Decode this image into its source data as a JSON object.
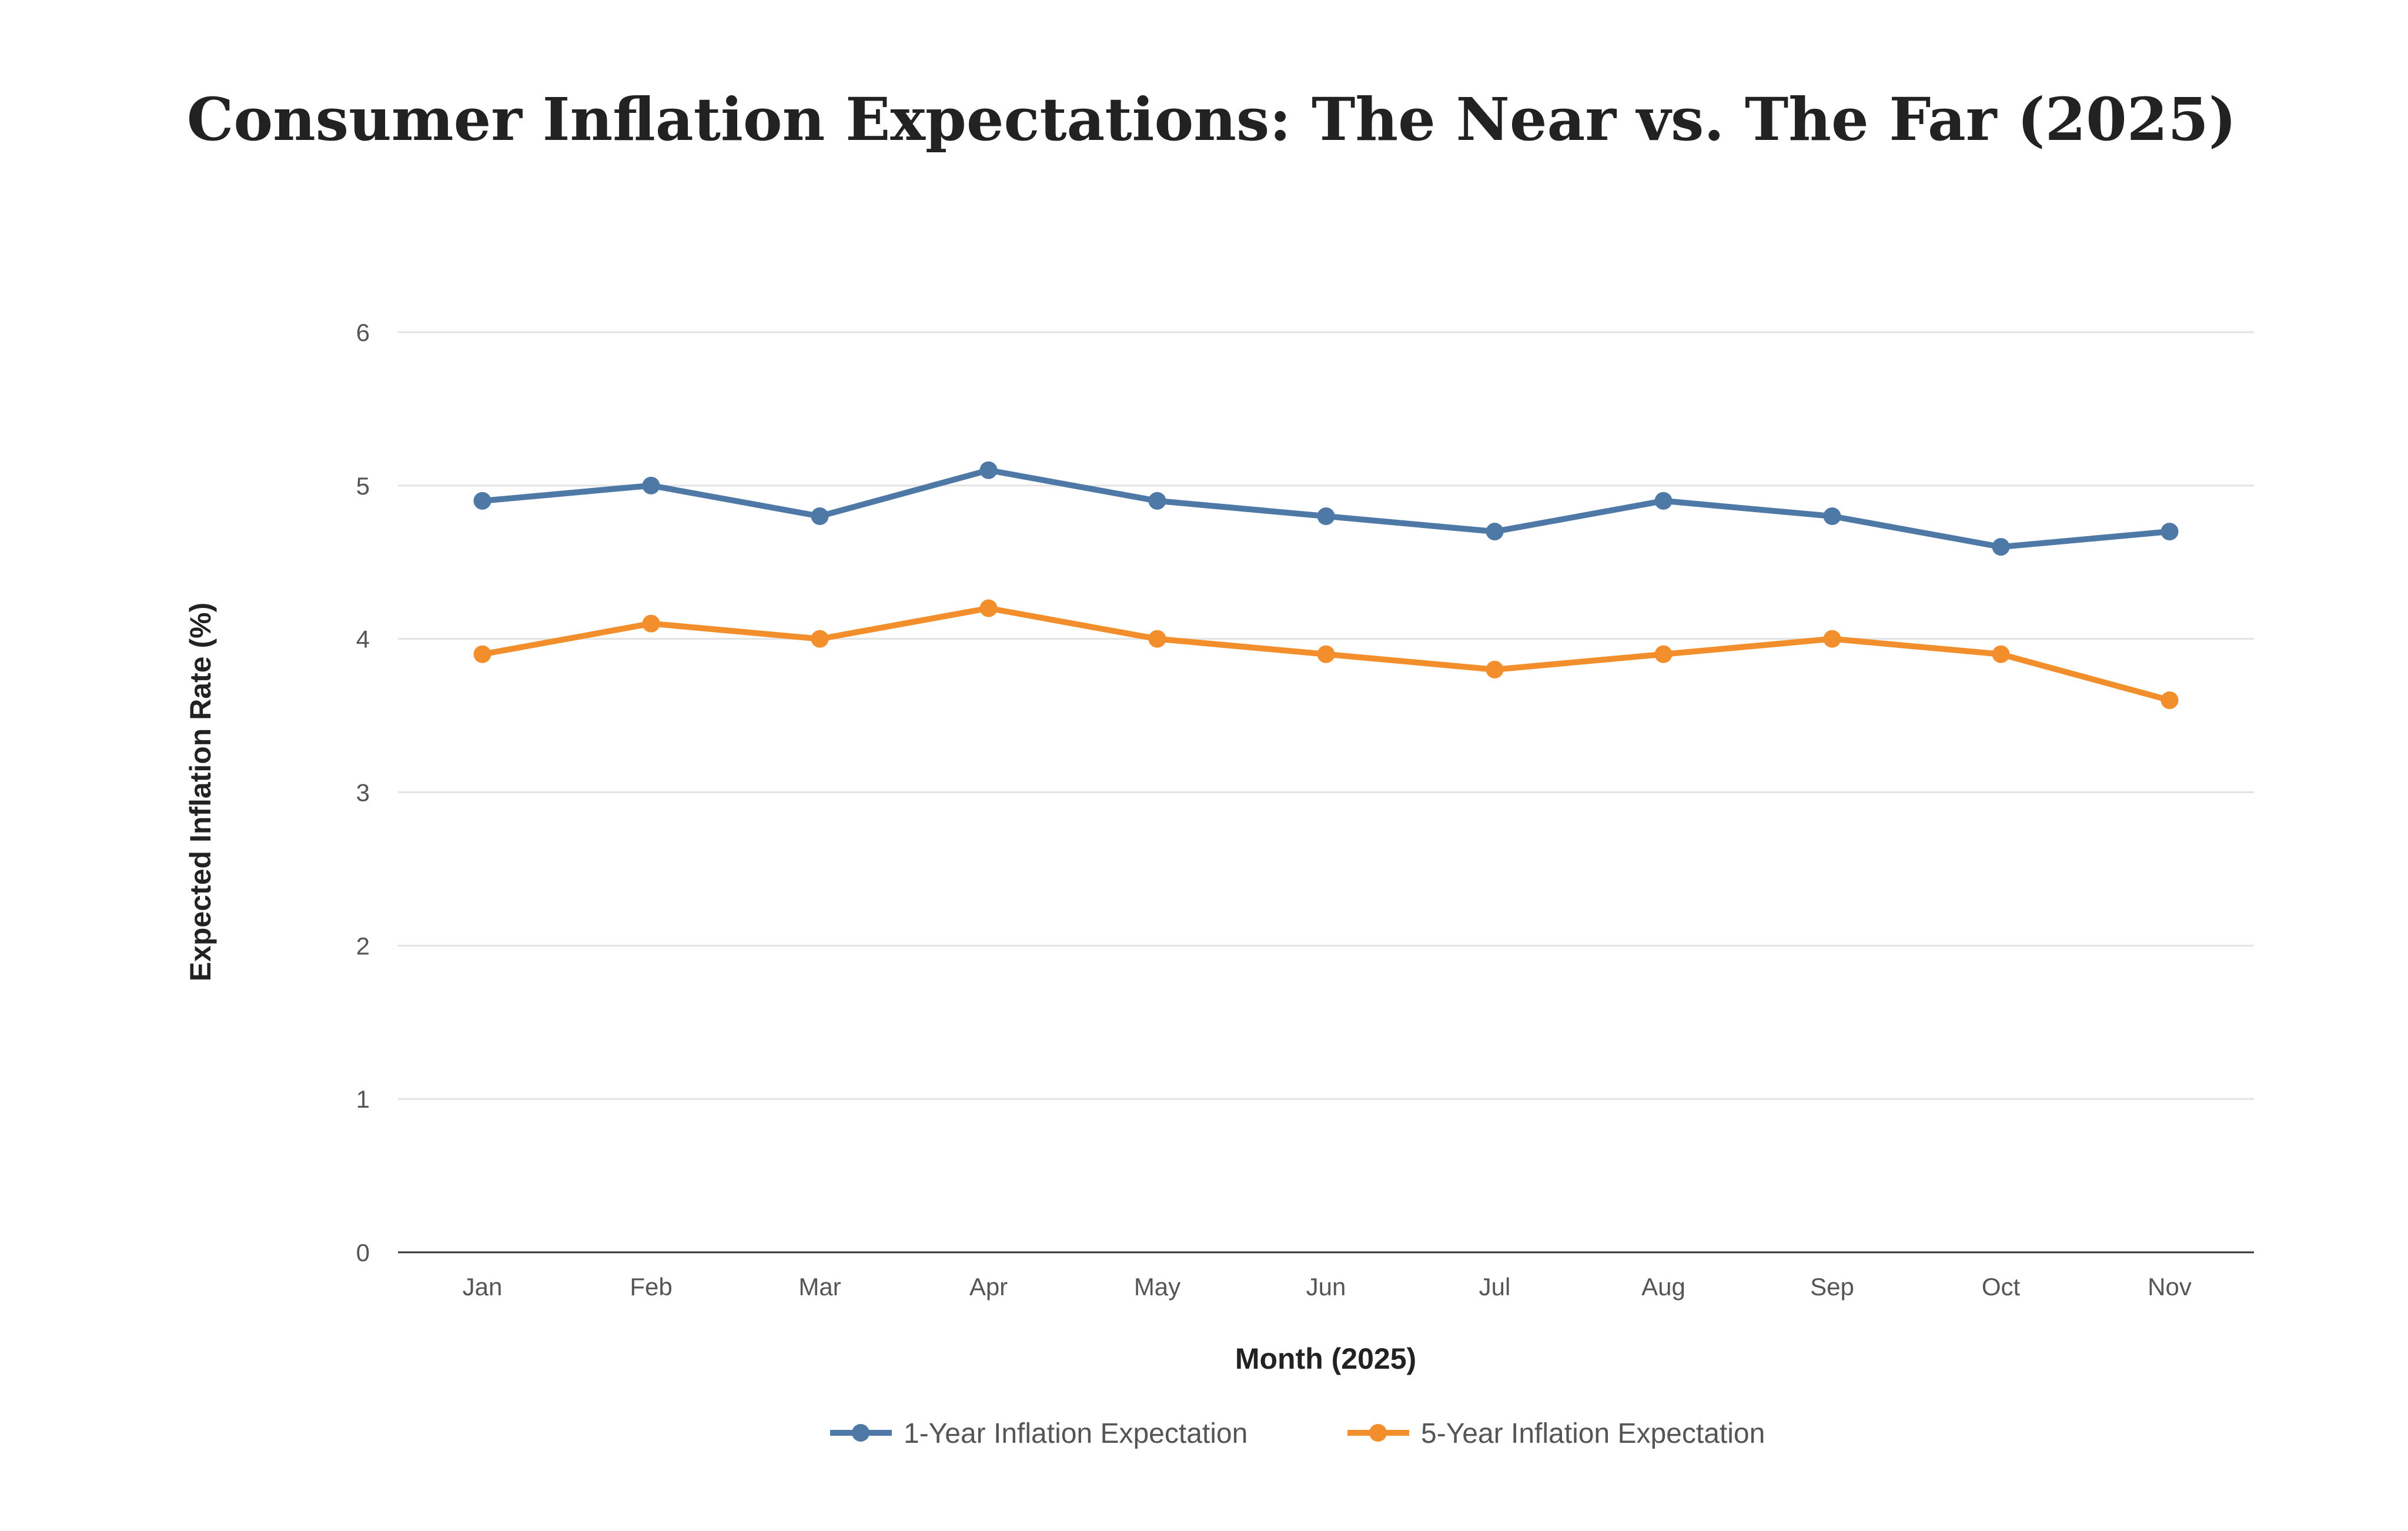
{
  "chart_data": {
    "type": "line",
    "title": "Consumer Inflation Expectations: The Near vs. The Far (2025)",
    "xlabel": "Month (2025)",
    "ylabel": "Expected Inflation Rate (%)",
    "categories": [
      "Jan",
      "Feb",
      "Mar",
      "Apr",
      "May",
      "Jun",
      "Jul",
      "Aug",
      "Sep",
      "Oct",
      "Nov"
    ],
    "ylim": [
      0,
      6
    ],
    "yticks": [
      "0",
      "1",
      "2",
      "3",
      "4",
      "5",
      "6"
    ],
    "grid": true,
    "legend_position": "bottom",
    "series": [
      {
        "name": "1-Year Inflation Expectation",
        "color": "#4e79a7",
        "values": [
          4.9,
          5.0,
          4.8,
          5.1,
          4.9,
          4.8,
          4.7,
          4.9,
          4.8,
          4.6,
          4.7
        ]
      },
      {
        "name": "5-Year Inflation Expectation",
        "color": "#f28e2b",
        "values": [
          3.9,
          4.1,
          4.0,
          4.2,
          4.0,
          3.9,
          3.8,
          3.9,
          4.0,
          3.9,
          3.6
        ]
      }
    ]
  }
}
